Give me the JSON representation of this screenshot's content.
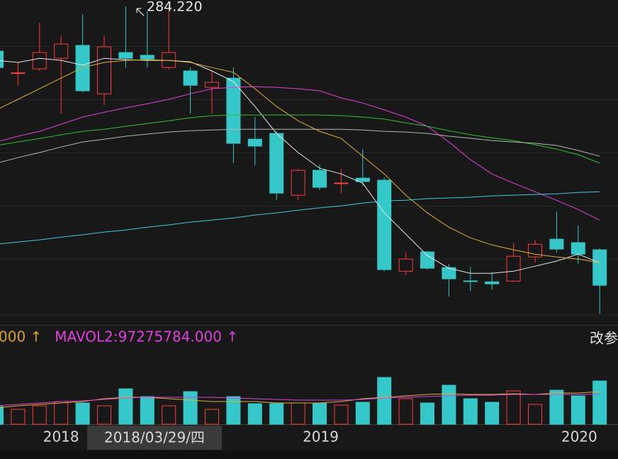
{
  "chart_data": {
    "type": "candlestick",
    "ylim": [
      150,
      287
    ],
    "colors": {
      "up": "#ff3b3b",
      "down": "#35c8c8"
    },
    "annotation": {
      "value": 284.22,
      "label": "284.220"
    },
    "open": [
      264.8,
      255.3,
      257.1,
      261.7,
      267.3,
      246.3,
      264.2,
      263.0,
      257.7,
      256.2,
      249.1,
      253.1,
      226.6,
      229.1,
      202.3,
      213.1,
      207.5,
      209.7,
      208.8,
      169.3,
      177.7,
      170.9,
      165.1,
      164.7,
      165.0,
      175.5,
      183.2,
      181.7,
      178.6
    ],
    "high": [
      268.5,
      259.9,
      277.1,
      271.6,
      280.8,
      271.6,
      284.22,
      282.0,
      282.5,
      257.7,
      256.2,
      257.7,
      236.2,
      230.0,
      213.7,
      215.5,
      213.7,
      222.3,
      210.0,
      177.4,
      178.0,
      172.4,
      171.2,
      169.0,
      181.4,
      182.9,
      195.2,
      189.1,
      179.2
    ],
    "low": [
      256.2,
      250.0,
      256.2,
      237.7,
      247.0,
      241.4,
      257.7,
      257.7,
      256.8,
      237.7,
      237.7,
      216.2,
      215.2,
      200.1,
      200.1,
      204.5,
      203.2,
      206.3,
      169.3,
      167.5,
      170.0,
      158.3,
      160.7,
      161.3,
      164.7,
      173.0,
      177.4,
      172.4,
      150.9
    ],
    "close": [
      257.7,
      255.4,
      264.2,
      267.9,
      247.6,
      266.7,
      261.7,
      261.4,
      264.2,
      250.0,
      251.3,
      224.8,
      223.6,
      203.2,
      213.1,
      205.7,
      207.6,
      208.2,
      170.0,
      174.6,
      170.6,
      166.0,
      165.0,
      163.8,
      175.8,
      181.0,
      178.9,
      176.7,
      163.2
    ],
    "ma_series": [
      {
        "color": "#e6e6e6",
        "values": [
          260.8,
          259.9,
          261.7,
          260.8,
          258.7,
          261.7,
          261.1,
          260.8,
          260.8,
          260.2,
          256.2,
          251.6,
          240.8,
          229.1,
          220.8,
          214.0,
          211.5,
          207.5,
          194.6,
          185.4,
          176.1,
          170.6,
          168.4,
          168.4,
          169.3,
          171.5,
          173.7,
          176.7,
          173.0
        ]
      },
      {
        "color": "#e0b030",
        "values": [
          239.3,
          243.9,
          248.5,
          253.1,
          257.7,
          259.9,
          260.8,
          261.1,
          260.8,
          259.9,
          257.7,
          255.6,
          248.5,
          240.8,
          234.6,
          230.0,
          226.9,
          219.2,
          211.5,
          202.3,
          194.6,
          188.4,
          183.8,
          180.7,
          178.6,
          176.7,
          175.5,
          174.6,
          173.0
        ]
      },
      {
        "color": "#e040e0",
        "values": [
          225.4,
          227.9,
          230.0,
          233.1,
          236.2,
          238.3,
          240.2,
          242.0,
          243.9,
          246.3,
          248.5,
          249.1,
          249.4,
          249.1,
          248.5,
          247.6,
          244.5,
          242.3,
          239.3,
          236.2,
          232.2,
          225.4,
          217.7,
          211.5,
          207.5,
          203.8,
          200.1,
          196.1,
          191.5
        ]
      },
      {
        "color": "#30c030",
        "values": [
          223.9,
          225.4,
          226.9,
          228.5,
          230.0,
          230.9,
          232.2,
          233.4,
          234.6,
          235.9,
          236.8,
          237.1,
          237.1,
          237.1,
          237.1,
          237.1,
          236.8,
          236.2,
          235.3,
          233.7,
          232.2,
          230.3,
          228.5,
          227.2,
          226.0,
          224.2,
          222.3,
          219.9,
          216.2
        ]
      },
      {
        "color": "#b4b4b4",
        "values": [
          216.2,
          218.6,
          220.8,
          223.2,
          225.4,
          226.6,
          227.9,
          228.8,
          229.7,
          230.3,
          230.6,
          230.9,
          230.9,
          230.9,
          230.9,
          230.9,
          230.9,
          230.6,
          230.0,
          229.7,
          229.1,
          227.9,
          227.0,
          226.0,
          225.4,
          224.8,
          223.9,
          221.7,
          219.2
        ]
      },
      {
        "color": "#40c8e0",
        "values": [
          181.0,
          182.0,
          182.9,
          184.1,
          185.1,
          186.3,
          187.2,
          188.4,
          189.4,
          190.6,
          191.5,
          192.4,
          193.7,
          194.6,
          195.8,
          196.8,
          197.7,
          198.9,
          199.8,
          200.1,
          200.8,
          201.1,
          201.4,
          202.0,
          202.3,
          202.6,
          202.9,
          203.5,
          203.8
        ]
      }
    ],
    "volume": {
      "ylim": [
        0,
        237000000
      ],
      "values": [
        57500000,
        48300000,
        59800000,
        73600000,
        69000000,
        59800000,
        115000000,
        89700000,
        59800000,
        105800000,
        48300000,
        89700000,
        66700000,
        66700000,
        69000000,
        69000000,
        62100000,
        71300000,
        151800000,
        82800000,
        69000000,
        126500000,
        82800000,
        71300000,
        108100000,
        64400000,
        110400000,
        92000000,
        140300000
      ],
      "series": [
        {
          "color": "#e0b030",
          "values": [
            52900000,
            59800000,
            64400000,
            69000000,
            73600000,
            82800000,
            87400000,
            87400000,
            82800000,
            78200000,
            73600000,
            73600000,
            73600000,
            69000000,
            69000000,
            69000000,
            73600000,
            82800000,
            87400000,
            92000000,
            96600000,
            98900000,
            96600000,
            96600000,
            98900000,
            96600000,
            101200000,
            101200000,
            105800000
          ]
        },
        {
          "color": "#e040e0",
          "values": [
            59800000,
            64400000,
            69000000,
            73600000,
            75900000,
            80500000,
            85100000,
            87400000,
            87400000,
            87400000,
            87400000,
            85100000,
            82800000,
            80500000,
            78200000,
            78200000,
            78200000,
            80500000,
            85100000,
            87400000,
            89700000,
            92000000,
            94300000,
            94300000,
            96600000,
            96600000,
            96600000,
            96600000,
            97275784
          ]
        }
      ],
      "labels": [
        {
          "text": "000 ↑",
          "color": "#d8a020"
        },
        {
          "text": "MAVOL2:97275784.000 ↑",
          "color": "#e040e0"
        }
      ]
    },
    "x_labels": [
      "2018",
      "2019",
      "2020"
    ],
    "crosshair_label": "2018/03/29/四",
    "button": "改参"
  }
}
